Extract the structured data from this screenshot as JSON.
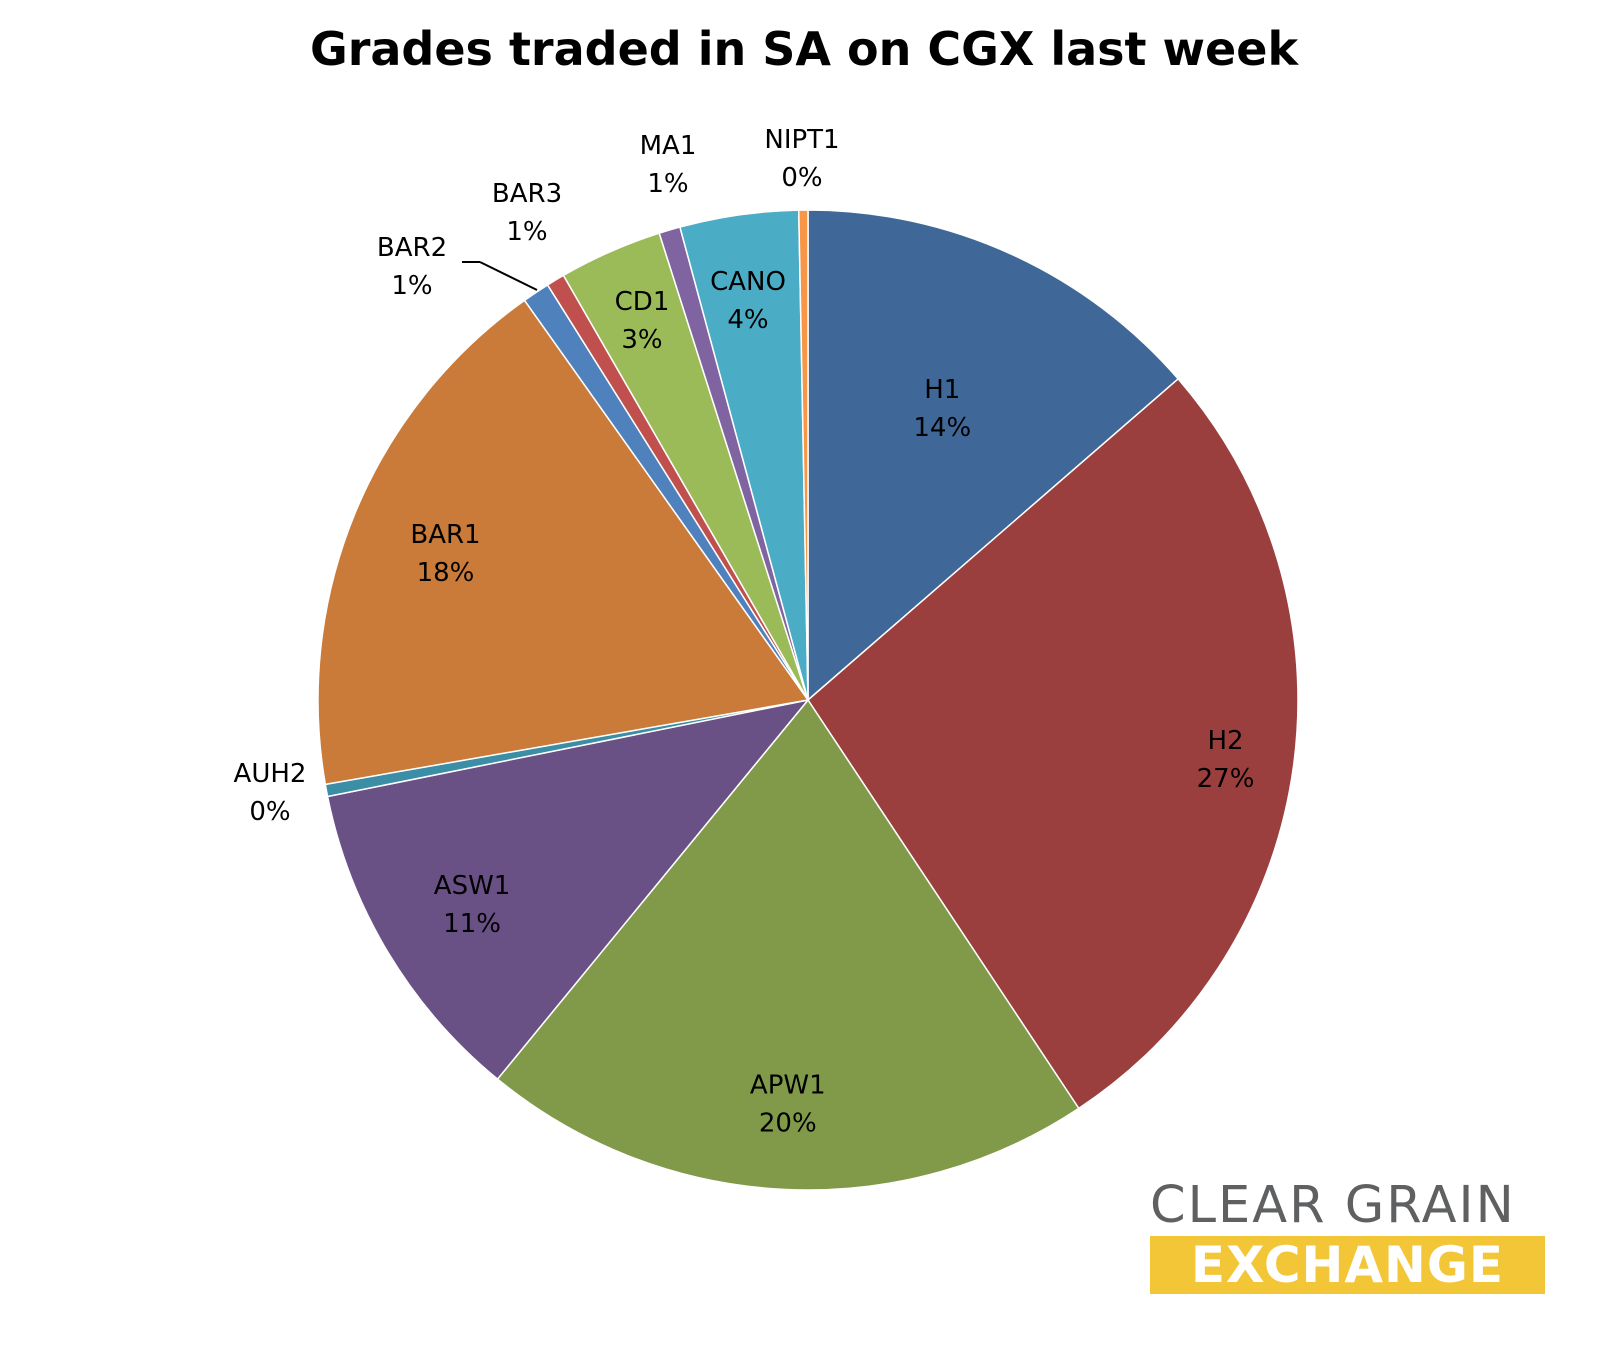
{
  "chart_data": {
    "type": "pie",
    "title": "Grades traded in SA on CGX last week",
    "slices": [
      {
        "name": "H1",
        "pct_label": "14%",
        "value": 13.6,
        "color": "#3f6898"
      },
      {
        "name": "H2",
        "pct_label": "27%",
        "value": 27.0,
        "color": "#9b3e3e"
      },
      {
        "name": "APW1",
        "pct_label": "20%",
        "value": 20.2,
        "color": "#809a4a"
      },
      {
        "name": "ASW1",
        "pct_label": "11%",
        "value": 10.9,
        "color": "#695085"
      },
      {
        "name": "AUH2",
        "pct_label": "0%",
        "value": 0.4,
        "color": "#3b8ea6"
      },
      {
        "name": "BAR1",
        "pct_label": "18%",
        "value": 17.9,
        "color": "#ca7a39"
      },
      {
        "name": "BAR2",
        "pct_label": "1%",
        "value": 0.9,
        "color": "#4f81bd"
      },
      {
        "name": "BAR3",
        "pct_label": "1%",
        "value": 0.6,
        "color": "#c0504d"
      },
      {
        "name": "CD1",
        "pct_label": "3%",
        "value": 3.4,
        "color": "#9bbb59"
      },
      {
        "name": "MA1",
        "pct_label": "1%",
        "value": 0.7,
        "color": "#8064a2"
      },
      {
        "name": "CANO",
        "pct_label": "4%",
        "value": 3.9,
        "color": "#4bacc6"
      },
      {
        "name": "NIPT1",
        "pct_label": "0%",
        "value": 0.3,
        "color": "#f79646"
      }
    ]
  },
  "logo": {
    "line1": "CLEAR GRAIN",
    "line2": "EXCHANGE",
    "line1_color": "#5f6062",
    "line2_bg": "#f3c637"
  }
}
